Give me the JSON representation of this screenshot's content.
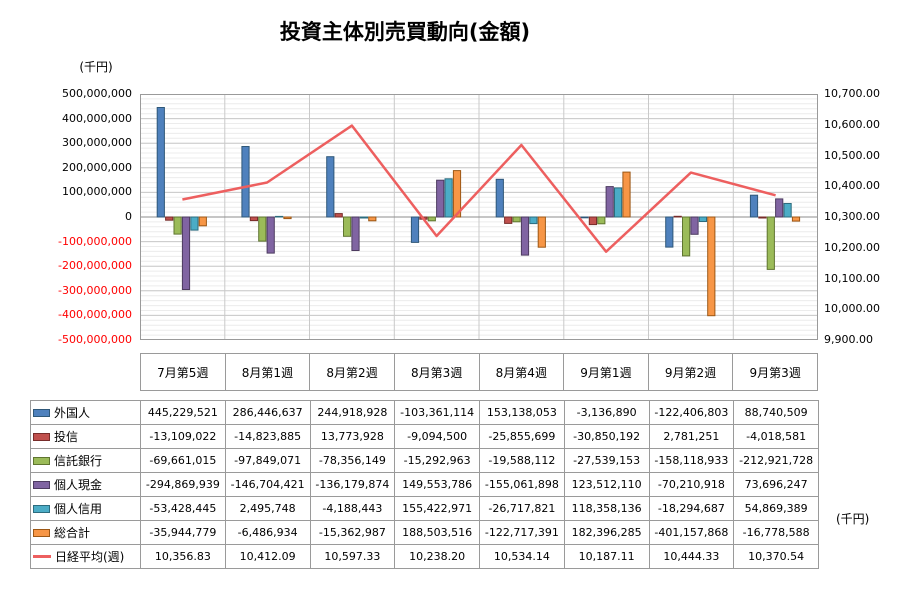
{
  "chart_data": {
    "type": "combo-bar-line",
    "title": "投資主体別売買動向(金額)",
    "categories": [
      "7月第5週",
      "8月第1週",
      "8月第2週",
      "8月第3週",
      "8月第4週",
      "9月第1週",
      "9月第2週",
      "9月第3週"
    ],
    "series": [
      {
        "name": "外国人",
        "type": "bar",
        "color": "#4F81BD",
        "border": "#2F5879",
        "values": [
          445229521,
          286446637,
          244918928,
          -103361114,
          153138053,
          -3136890,
          -122406803,
          88740509
        ]
      },
      {
        "name": "投信",
        "type": "bar",
        "color": "#C0504D",
        "border": "#772C2A",
        "values": [
          -13109022,
          -14823885,
          13773928,
          -9094500,
          -25855699,
          -30850192,
          2781251,
          -4018581
        ]
      },
      {
        "name": "信託銀行",
        "type": "bar",
        "color": "#9BBB59",
        "border": "#5F7530",
        "values": [
          -69661015,
          -97849071,
          -78356149,
          -15292963,
          -19588112,
          -27539153,
          -158118933,
          -212921728
        ]
      },
      {
        "name": "個人現金",
        "type": "bar",
        "color": "#8064A2",
        "border": "#4D3B60",
        "values": [
          -294869939,
          -146704421,
          -136179874,
          149553786,
          -155061898,
          123512110,
          -70210918,
          73696247
        ]
      },
      {
        "name": "個人信用",
        "type": "bar",
        "color": "#4BACC6",
        "border": "#2C6C7E",
        "values": [
          -53428445,
          2495748,
          -4188443,
          155422971,
          -26717821,
          118358136,
          -18294687,
          54869389
        ]
      },
      {
        "name": "総合計",
        "type": "bar",
        "color": "#F79646",
        "border": "#9C5715",
        "values": [
          -35944779,
          -6486934,
          -15362987,
          188503516,
          -122717391,
          182396285,
          -401157868,
          -16778588
        ]
      },
      {
        "name": "日経平均(週)",
        "type": "line",
        "axis": "right",
        "color": "#ED5F5F",
        "values": [
          10356.83,
          10412.09,
          10597.33,
          10238.2,
          10534.14,
          10187.11,
          10444.33,
          10370.54
        ]
      }
    ],
    "left_axis": {
      "unit": "(千円)",
      "min": -500000000,
      "max": 500000000,
      "major_unit": 100000000,
      "minor_unit": 20000000,
      "negative_tick_color": "#ff0000",
      "tick_labels": [
        "500,000,000",
        "400,000,000",
        "300,000,000",
        "200,000,000",
        "100,000,000",
        "0",
        "-100,000,000",
        "-200,000,000",
        "-300,000,000",
        "-400,000,000",
        "-500,000,000"
      ]
    },
    "right_axis": {
      "unit": "(千円)",
      "min": 9900,
      "max": 10700,
      "major_unit": 100,
      "tick_labels": [
        "10,700.00",
        "10,600.00",
        "10,500.00",
        "10,400.00",
        "10,300.00",
        "10,200.00",
        "10,100.00",
        "10,000.00",
        "9,900.00"
      ]
    },
    "grid": true,
    "legend_position": "left column of attached data table"
  }
}
